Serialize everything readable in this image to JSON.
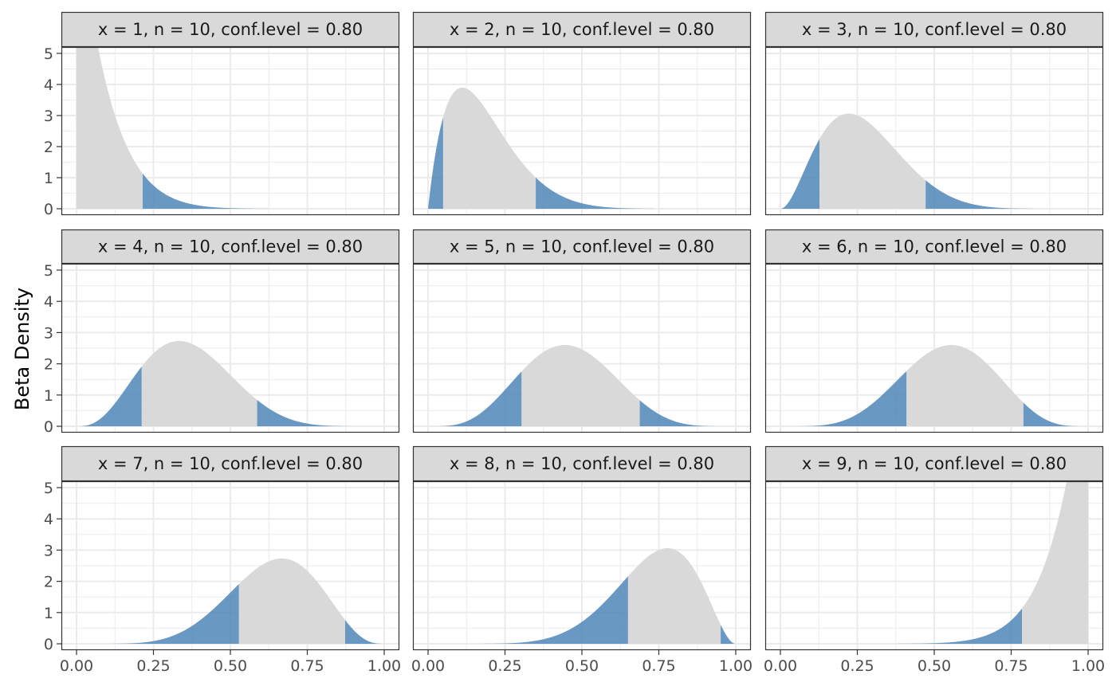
{
  "chart_data": {
    "type": "area",
    "title": "",
    "xlabel": "",
    "ylabel": "Beta Density",
    "xlim": [
      0,
      1
    ],
    "ylim": [
      0,
      5
    ],
    "x_ticks": [
      "0.00",
      "0.25",
      "0.50",
      "0.75",
      "1.00"
    ],
    "y_ticks": [
      "0",
      "1",
      "2",
      "3",
      "4",
      "5"
    ],
    "grid": true,
    "legend": "none",
    "colors": {
      "tail": "#4f86b8",
      "body": "#d9d9d9",
      "strip_fill": "#d9d9d9",
      "border": "#333333",
      "grid": "#ebebeb"
    },
    "panels": [
      {
        "label": "x = 1, n = 10, conf.level = 0.80",
        "x": 1,
        "n": 10,
        "conf_level": 0.8,
        "alpha": 1,
        "beta": 10,
        "lower": 0.0,
        "upper": 0.215
      },
      {
        "label": "x = 2, n = 10, conf.level = 0.80",
        "x": 2,
        "n": 10,
        "conf_level": 0.8,
        "alpha": 2,
        "beta": 9,
        "lower": 0.049,
        "upper": 0.35
      },
      {
        "label": "x = 3, n = 10, conf.level = 0.80",
        "x": 3,
        "n": 10,
        "conf_level": 0.8,
        "alpha": 3,
        "beta": 8,
        "lower": 0.127,
        "upper": 0.472
      },
      {
        "label": "x = 4, n = 10, conf.level = 0.80",
        "x": 4,
        "n": 10,
        "conf_level": 0.8,
        "alpha": 4,
        "beta": 7,
        "lower": 0.212,
        "upper": 0.587
      },
      {
        "label": "x = 5, n = 10, conf.level = 0.80",
        "x": 5,
        "n": 10,
        "conf_level": 0.8,
        "alpha": 5,
        "beta": 6,
        "lower": 0.304,
        "upper": 0.688
      },
      {
        "label": "x = 6, n = 10, conf.level = 0.80",
        "x": 6,
        "n": 10,
        "conf_level": 0.8,
        "alpha": 6,
        "beta": 5,
        "lower": 0.41,
        "upper": 0.79
      },
      {
        "label": "x = 7, n = 10, conf.level = 0.80",
        "x": 7,
        "n": 10,
        "conf_level": 0.8,
        "alpha": 7,
        "beta": 4,
        "lower": 0.528,
        "upper": 0.873
      },
      {
        "label": "x = 8, n = 10, conf.level = 0.80",
        "x": 8,
        "n": 10,
        "conf_level": 0.8,
        "alpha": 8,
        "beta": 3,
        "lower": 0.65,
        "upper": 0.951
      },
      {
        "label": "x = 9, n = 10, conf.level = 0.80",
        "x": 9,
        "n": 10,
        "conf_level": 0.8,
        "alpha": 10,
        "beta": 1,
        "lower": 0.785,
        "upper": 1.0
      }
    ]
  }
}
